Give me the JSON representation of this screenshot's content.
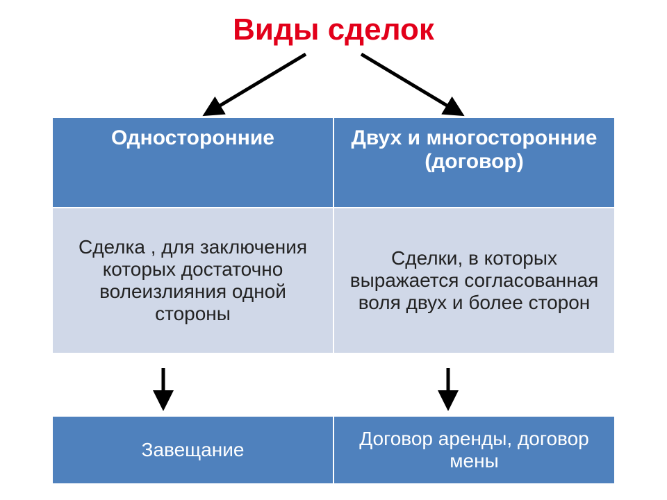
{
  "title": {
    "text": "Виды сделок",
    "color": "#e2001a",
    "fontsize": 44
  },
  "header": {
    "bg": "#4f81bd",
    "fg": "#ffffff",
    "fontsize": 30,
    "left": "Односторонние",
    "right": "Двух и многосторонние (договор)"
  },
  "desc": {
    "bg": "#d0d8e8",
    "fg": "#222222",
    "fontsize": 28,
    "left": "Сделка , для заключения которых достаточно волеизлияния одной стороны",
    "right": "Сделки, в которых выражается согласованная воля двух и более сторон"
  },
  "examples": {
    "bg": "#4f81bd",
    "fg": "#ffffff",
    "fontsize": 28,
    "left": "Завещание",
    "right": "Договор аренды, договор мены"
  },
  "arrows": {
    "color": "#000000",
    "stroke_width": 5
  }
}
